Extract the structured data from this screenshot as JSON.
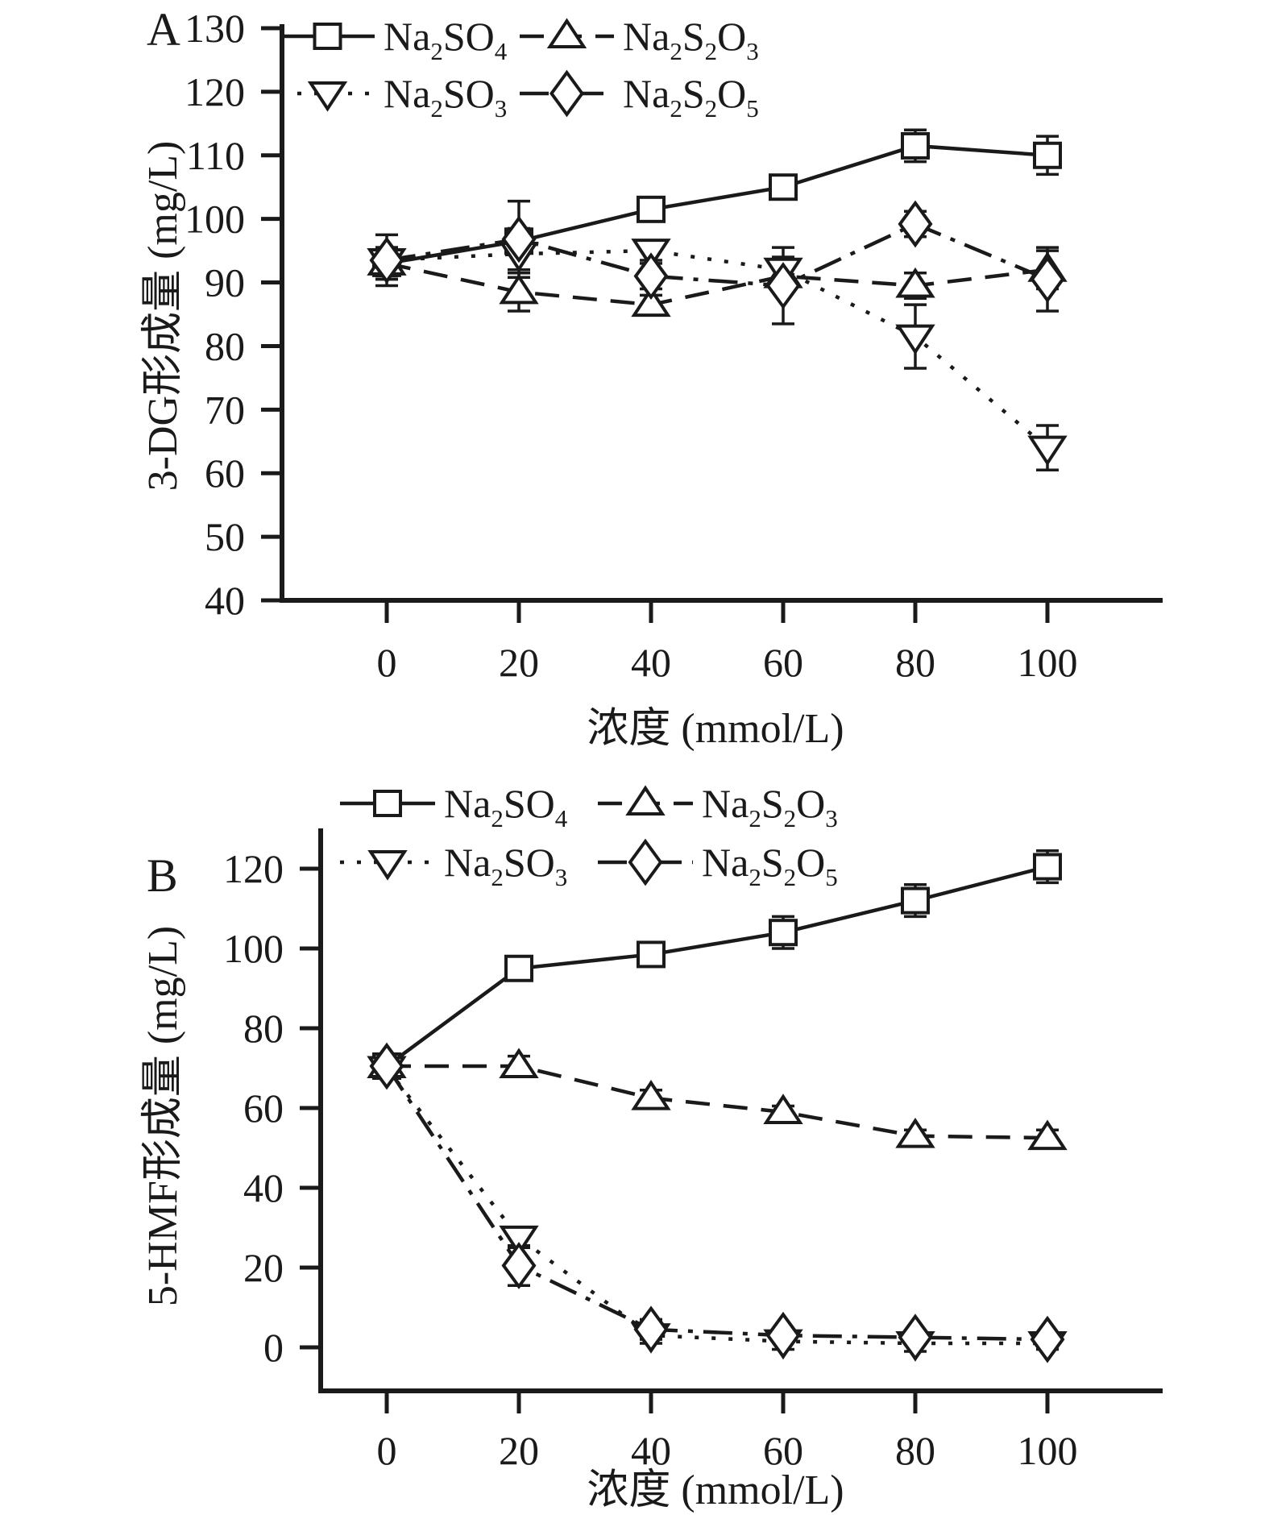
{
  "figure_description": "Two-panel line chart with error bars: effect of four sulfur salts on 3-DG (panel A) and 5-HMF (panel B) formation",
  "legend_rows": [
    [
      "Na2SO4",
      "Na2S2O3"
    ],
    [
      "Na2SO3",
      "Na2S2O5"
    ]
  ],
  "line_color": "#1a1a1a",
  "chart_data": [
    {
      "type": "line",
      "panel_label": "A",
      "ylabel": "3-DG形成量 (mg/L)",
      "xlabel": "浓度 (mmol/L)",
      "x": [
        0,
        20,
        40,
        60,
        80,
        100
      ],
      "xticks": [
        0,
        20,
        40,
        60,
        80,
        100
      ],
      "yticks": [
        40,
        50,
        60,
        70,
        80,
        90,
        100,
        110,
        120,
        130
      ],
      "ylim": [
        40,
        130
      ],
      "grid": false,
      "legend_position": "top-inside-two-rows",
      "series": [
        {
          "name": "Na2SO4",
          "marker": "square",
          "line_style": "solid",
          "values": [
            93,
            96.5,
            101.5,
            105,
            111.5,
            110
          ],
          "errors": [
            2.5,
            2,
            1.5,
            1,
            2.5,
            3
          ]
        },
        {
          "name": "Na2S2O3",
          "marker": "triangle-up",
          "line_style": "dashed",
          "values": [
            93,
            88.5,
            86.5,
            91,
            89.5,
            92
          ],
          "errors": [
            2,
            3,
            1.5,
            2.5,
            2,
            3
          ]
        },
        {
          "name": "Na2SO3",
          "marker": "triangle-down",
          "line_style": "dotted",
          "values": [
            93.5,
            94.5,
            95,
            92,
            81.5,
            64
          ],
          "errors": [
            2,
            2.5,
            1.5,
            2,
            5,
            3.5
          ]
        },
        {
          "name": "Na2S2O5",
          "marker": "diamond",
          "line_style": "dashdot",
          "values": [
            93.5,
            96.8,
            91,
            89.5,
            99.2,
            90.5
          ],
          "errors": [
            4,
            6,
            2,
            6,
            2,
            5
          ]
        }
      ]
    },
    {
      "type": "line",
      "panel_label": "B",
      "ylabel": "5-HMF形成量 (mg/L)",
      "xlabel": "浓度 (mmol/L)",
      "x": [
        0,
        20,
        40,
        60,
        80,
        100
      ],
      "xticks": [
        0,
        20,
        40,
        60,
        80,
        100
      ],
      "yticks": [
        0,
        20,
        40,
        60,
        80,
        100,
        120
      ],
      "ylim": [
        0,
        120
      ],
      "grid": false,
      "legend_position": "top-two-rows",
      "series": [
        {
          "name": "Na2SO4",
          "marker": "square",
          "line_style": "solid",
          "values": [
            70.5,
            95,
            98.5,
            104,
            112,
            120.5
          ],
          "errors": [
            1.5,
            2,
            1.5,
            4,
            4,
            4
          ]
        },
        {
          "name": "Na2S2O3",
          "marker": "triangle-up",
          "line_style": "dashed",
          "values": [
            70.5,
            70.5,
            62.5,
            59,
            53,
            52.5
          ],
          "errors": [
            1.5,
            2.5,
            2,
            1.5,
            1.5,
            2
          ]
        },
        {
          "name": "Na2SO3",
          "marker": "triangle-down",
          "line_style": "dotted",
          "values": [
            70,
            27.5,
            3,
            1.5,
            1,
            1
          ],
          "errors": [
            2,
            2.5,
            2,
            2,
            2,
            1.5
          ]
        },
        {
          "name": "Na2S2O5",
          "marker": "diamond",
          "line_style": "dashdot",
          "values": [
            70.5,
            20.5,
            4.5,
            3,
            2.5,
            2
          ],
          "errors": [
            1.5,
            5,
            2.5,
            1.5,
            1.5,
            1
          ]
        }
      ]
    }
  ]
}
